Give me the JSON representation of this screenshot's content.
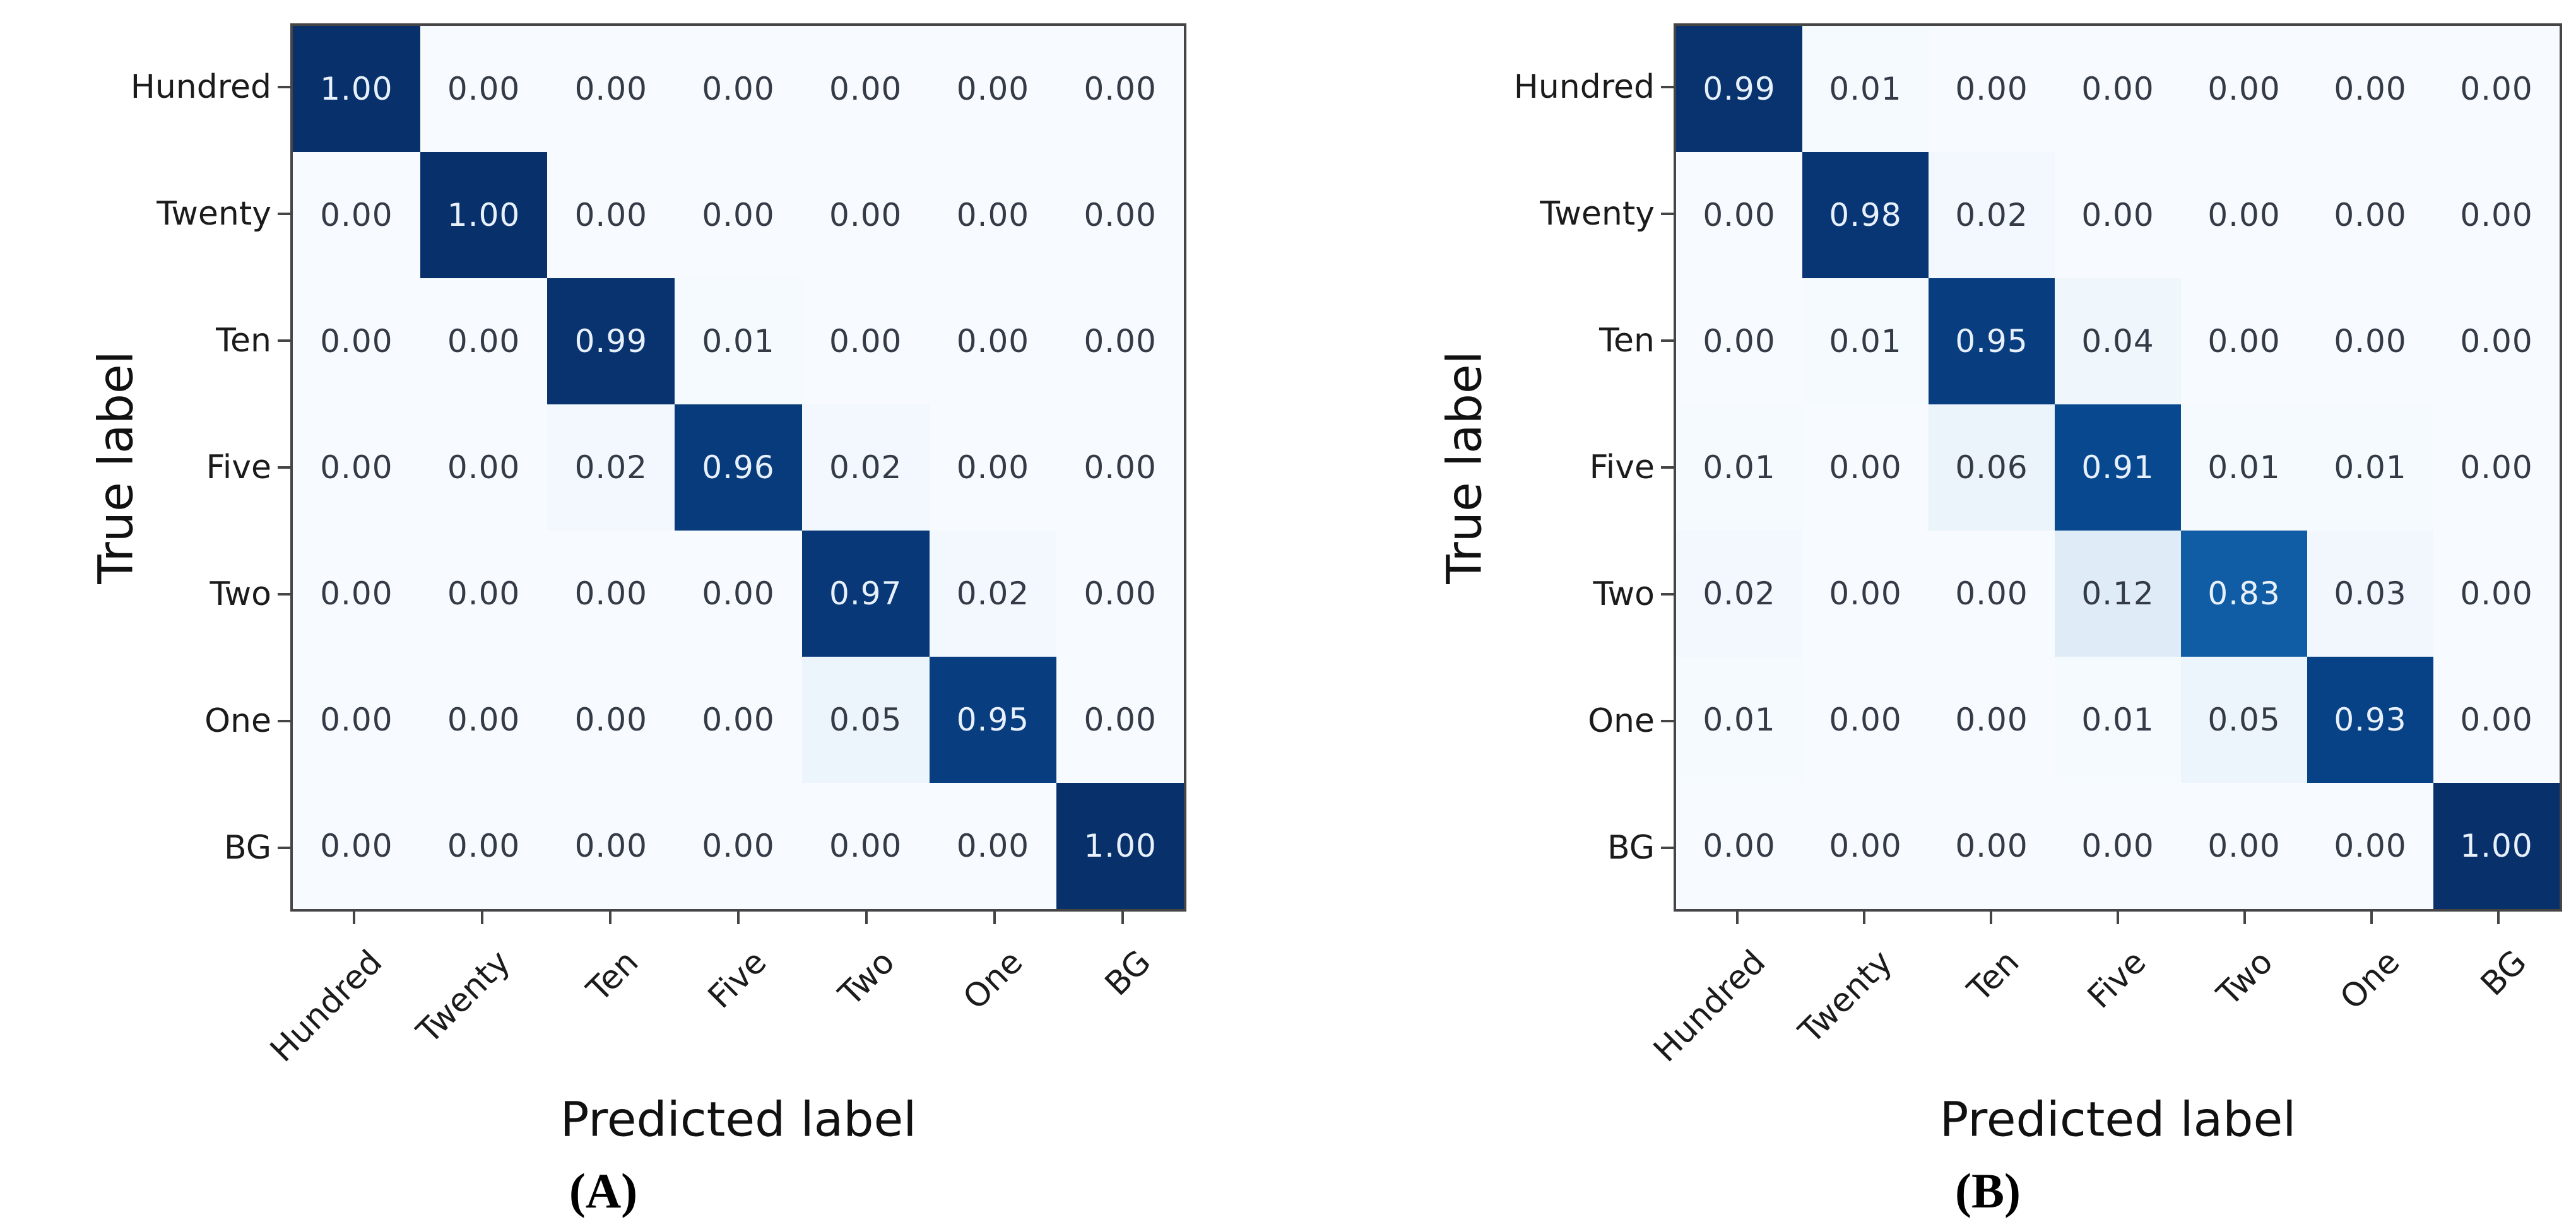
{
  "colors": {
    "spine": "#454545",
    "tick_label": "#1b1b1b",
    "axis_label": "#111111",
    "caption": "#000000",
    "cell_text_light": "#e8f1fb",
    "cell_text_dark": "#343b46",
    "colormap_min": "#f7fbff",
    "colormap_max": "#08306b",
    "colormap_anchors": [
      "#f7fbff",
      "#deebf7",
      "#c6dbef",
      "#9ecae1",
      "#6baed6",
      "#4292c6",
      "#2171b5",
      "#08519c",
      "#08306b"
    ]
  },
  "chart_data": [
    {
      "type": "heatmap",
      "panel": "A",
      "title": "(A)",
      "xlabel": "Predicted label",
      "ylabel": "True label",
      "colormap": "Blues",
      "value_range": [
        0,
        1
      ],
      "x_tick_labels": [
        "Hundred",
        "Twenty",
        "Ten",
        "Five",
        "Two",
        "One",
        "BG"
      ],
      "y_tick_labels": [
        "Hundred",
        "Twenty",
        "Ten",
        "Five",
        "Two",
        "One",
        "BG"
      ],
      "matrix": [
        [
          1.0,
          0.0,
          0.0,
          0.0,
          0.0,
          0.0,
          0.0
        ],
        [
          0.0,
          1.0,
          0.0,
          0.0,
          0.0,
          0.0,
          0.0
        ],
        [
          0.0,
          0.0,
          0.99,
          0.01,
          0.0,
          0.0,
          0.0
        ],
        [
          0.0,
          0.0,
          0.02,
          0.96,
          0.02,
          0.0,
          0.0
        ],
        [
          0.0,
          0.0,
          0.0,
          0.0,
          0.97,
          0.02,
          0.0
        ],
        [
          0.0,
          0.0,
          0.0,
          0.0,
          0.05,
          0.95,
          0.0
        ],
        [
          0.0,
          0.0,
          0.0,
          0.0,
          0.0,
          0.0,
          1.0
        ]
      ]
    },
    {
      "type": "heatmap",
      "panel": "B",
      "title": "(B)",
      "xlabel": "Predicted label",
      "ylabel": "True label",
      "colormap": "Blues",
      "value_range": [
        0,
        1
      ],
      "x_tick_labels": [
        "Hundred",
        "Twenty",
        "Ten",
        "Five",
        "Two",
        "One",
        "BG"
      ],
      "y_tick_labels": [
        "Hundred",
        "Twenty",
        "Ten",
        "Five",
        "Two",
        "One",
        "BG"
      ],
      "matrix": [
        [
          0.99,
          0.01,
          0.0,
          0.0,
          0.0,
          0.0,
          0.0
        ],
        [
          0.0,
          0.98,
          0.02,
          0.0,
          0.0,
          0.0,
          0.0
        ],
        [
          0.0,
          0.01,
          0.95,
          0.04,
          0.0,
          0.0,
          0.0
        ],
        [
          0.01,
          0.0,
          0.06,
          0.91,
          0.01,
          0.01,
          0.0
        ],
        [
          0.02,
          0.0,
          0.0,
          0.12,
          0.83,
          0.03,
          0.0
        ],
        [
          0.01,
          0.0,
          0.0,
          0.01,
          0.05,
          0.93,
          0.0
        ],
        [
          0.0,
          0.0,
          0.0,
          0.0,
          0.0,
          0.0,
          1.0
        ]
      ]
    }
  ]
}
